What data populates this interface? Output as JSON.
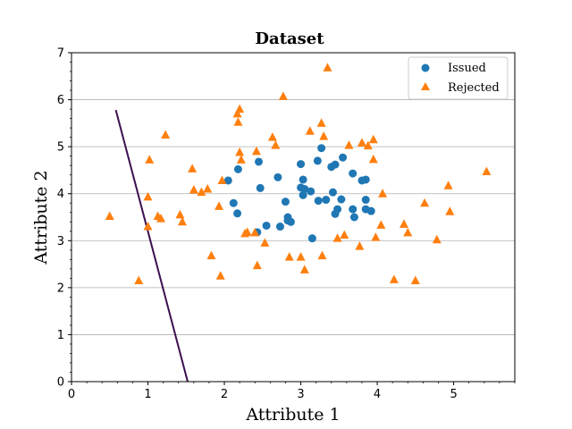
{
  "chart_data": {
    "type": "scatter",
    "title": "Dataset",
    "xlabel": "Attribute 1",
    "ylabel": "Attribute 2",
    "xlim": [
      0,
      5.8
    ],
    "ylim": [
      0,
      7
    ],
    "xticks": [
      0,
      1,
      2,
      3,
      4,
      5
    ],
    "yticks": [
      0,
      1,
      2,
      3,
      4,
      5,
      6,
      7
    ],
    "grid": "horizontal",
    "legend_position": "top-right",
    "series": [
      {
        "name": "Issued",
        "marker": "circle",
        "color": "#1f77b4",
        "points": [
          [
            2.05,
            4.28
          ],
          [
            2.18,
            4.52
          ],
          [
            2.12,
            3.8
          ],
          [
            2.17,
            3.58
          ],
          [
            2.45,
            4.68
          ],
          [
            2.47,
            4.12
          ],
          [
            2.43,
            3.18
          ],
          [
            2.55,
            3.32
          ],
          [
            2.7,
            4.35
          ],
          [
            2.73,
            3.3
          ],
          [
            2.8,
            3.83
          ],
          [
            2.83,
            3.5
          ],
          [
            2.83,
            3.43
          ],
          [
            2.87,
            3.4
          ],
          [
            3.0,
            4.63
          ],
          [
            3.0,
            4.13
          ],
          [
            3.03,
            4.3
          ],
          [
            3.03,
            3.97
          ],
          [
            3.05,
            4.1
          ],
          [
            3.13,
            4.05
          ],
          [
            3.15,
            3.05
          ],
          [
            3.22,
            4.7
          ],
          [
            3.23,
            3.85
          ],
          [
            3.27,
            4.97
          ],
          [
            3.33,
            3.87
          ],
          [
            3.4,
            4.57
          ],
          [
            3.45,
            4.62
          ],
          [
            3.42,
            4.03
          ],
          [
            3.45,
            3.57
          ],
          [
            3.48,
            3.67
          ],
          [
            3.53,
            3.88
          ],
          [
            3.55,
            4.77
          ],
          [
            3.68,
            4.43
          ],
          [
            3.68,
            3.67
          ],
          [
            3.7,
            3.5
          ],
          [
            3.8,
            4.28
          ],
          [
            3.85,
            4.3
          ],
          [
            3.85,
            3.87
          ],
          [
            3.85,
            3.67
          ],
          [
            3.92,
            3.63
          ]
        ]
      },
      {
        "name": "Rejected",
        "marker": "triangle",
        "color": "#ff7f0e",
        "points": [
          [
            0.5,
            3.52
          ],
          [
            0.88,
            2.15
          ],
          [
            1.0,
            3.93
          ],
          [
            1.0,
            3.3
          ],
          [
            1.02,
            4.72
          ],
          [
            1.13,
            3.52
          ],
          [
            1.17,
            3.47
          ],
          [
            1.23,
            5.25
          ],
          [
            1.42,
            3.55
          ],
          [
            1.45,
            3.4
          ],
          [
            1.58,
            4.53
          ],
          [
            1.6,
            4.08
          ],
          [
            1.7,
            4.03
          ],
          [
            1.78,
            4.1
          ],
          [
            1.83,
            2.68
          ],
          [
            1.93,
            3.73
          ],
          [
            1.95,
            2.25
          ],
          [
            1.97,
            4.28
          ],
          [
            2.17,
            5.7
          ],
          [
            2.18,
            5.52
          ],
          [
            2.2,
            5.8
          ],
          [
            2.2,
            4.88
          ],
          [
            2.22,
            4.72
          ],
          [
            2.27,
            3.15
          ],
          [
            2.3,
            3.18
          ],
          [
            2.4,
            3.17
          ],
          [
            2.42,
            4.9
          ],
          [
            2.43,
            2.47
          ],
          [
            2.53,
            2.95
          ],
          [
            2.63,
            5.2
          ],
          [
            2.67,
            5.03
          ],
          [
            2.77,
            6.07
          ],
          [
            2.85,
            2.65
          ],
          [
            3.0,
            2.65
          ],
          [
            3.05,
            2.38
          ],
          [
            3.12,
            5.33
          ],
          [
            3.27,
            5.5
          ],
          [
            3.28,
            2.68
          ],
          [
            3.3,
            5.22
          ],
          [
            3.35,
            6.68
          ],
          [
            3.48,
            3.05
          ],
          [
            3.57,
            3.12
          ],
          [
            3.63,
            5.03
          ],
          [
            3.77,
            2.88
          ],
          [
            3.8,
            5.08
          ],
          [
            3.88,
            5.02
          ],
          [
            3.95,
            5.15
          ],
          [
            3.95,
            4.73
          ],
          [
            3.98,
            3.07
          ],
          [
            4.05,
            3.33
          ],
          [
            4.07,
            4.0
          ],
          [
            4.22,
            2.17
          ],
          [
            4.35,
            3.35
          ],
          [
            4.4,
            3.17
          ],
          [
            4.5,
            2.15
          ],
          [
            4.62,
            3.8
          ],
          [
            4.78,
            3.02
          ],
          [
            4.93,
            4.17
          ],
          [
            4.95,
            3.62
          ],
          [
            5.43,
            4.47
          ]
        ]
      },
      {
        "name": "",
        "marker": "line",
        "color": "#3b0f4f",
        "points": [
          [
            0.58,
            5.78
          ],
          [
            1.52,
            0.0
          ]
        ]
      }
    ]
  }
}
